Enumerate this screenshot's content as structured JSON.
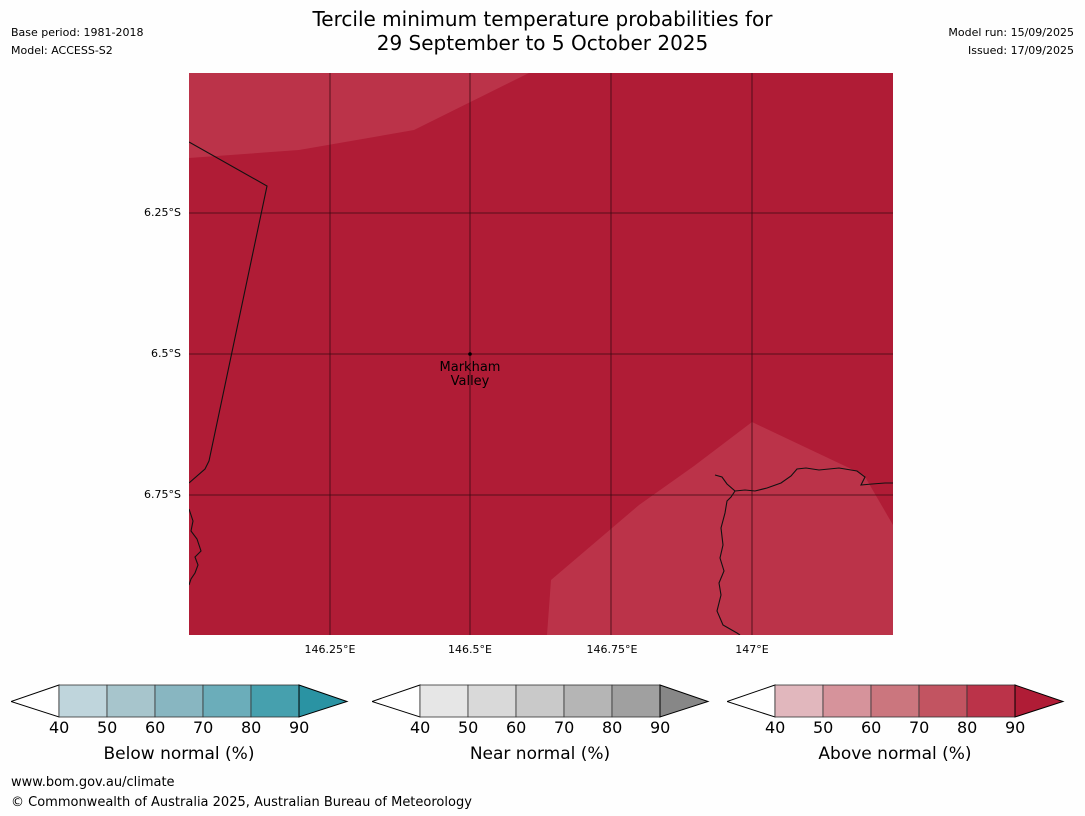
{
  "header": {
    "title_line1": "Tercile minimum temperature probabilities for",
    "title_line2": "29 September to 5 October 2025",
    "base_period": "Base period: 1981-2018",
    "model": "Model: ACCESS-S2",
    "model_run": "Model run: 15/09/2025",
    "issued": "Issued: 17/09/2025"
  },
  "map": {
    "lat_labels": [
      "6.25°S",
      "6.5°S",
      "6.75°S"
    ],
    "lon_labels": [
      "146.25°E",
      "146.5°E",
      "146.75°E",
      "147°E"
    ],
    "place_label_line1": "Markham",
    "place_label_line2": "Valley"
  },
  "colorbars": [
    {
      "title": "Below normal (%)",
      "ticks": [
        "40",
        "50",
        "60",
        "70",
        "80",
        "90"
      ],
      "colors": [
        "#bfd5dc",
        "#a7c5cc",
        "#88b6c1",
        "#6badba",
        "#46a0ae",
        "#2a93a3"
      ]
    },
    {
      "title": "Near normal (%)",
      "ticks": [
        "40",
        "50",
        "60",
        "70",
        "80",
        "90"
      ],
      "colors": [
        "#e6e6e6",
        "#d9d9d9",
        "#c9c9c9",
        "#b5b5b5",
        "#a0a0a0",
        "#878787"
      ]
    },
    {
      "title": "Above normal (%)",
      "ticks": [
        "40",
        "50",
        "60",
        "70",
        "80",
        "90"
      ],
      "colors": [
        "#e1b7bd",
        "#d6939b",
        "#cb767e",
        "#c25461",
        "#bb3349",
        "#b01c36"
      ]
    }
  ],
  "footer": {
    "url": "www.bom.gov.au/climate",
    "copyright": "© Commonwealth of Australia 2025, Australian Bureau of Meteorology"
  }
}
